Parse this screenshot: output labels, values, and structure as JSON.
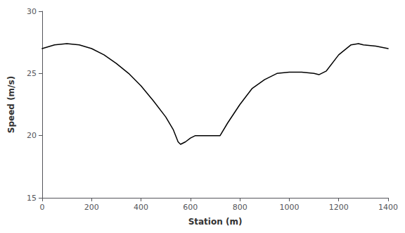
{
  "chart_data": {
    "type": "line",
    "x": [
      0,
      50,
      100,
      150,
      200,
      250,
      300,
      350,
      400,
      450,
      500,
      530,
      550,
      560,
      580,
      600,
      620,
      650,
      680,
      700,
      720,
      750,
      800,
      850,
      900,
      950,
      1000,
      1050,
      1100,
      1120,
      1150,
      1200,
      1250,
      1280,
      1300,
      1350,
      1400
    ],
    "values": [
      27.0,
      27.3,
      27.4,
      27.3,
      27.0,
      26.5,
      25.8,
      25.0,
      24.0,
      22.8,
      21.5,
      20.5,
      19.5,
      19.3,
      19.5,
      19.8,
      20.0,
      20.0,
      20.0,
      20.0,
      20.0,
      21.0,
      22.5,
      23.8,
      24.5,
      25.0,
      25.1,
      25.1,
      25.0,
      24.9,
      25.2,
      26.5,
      27.3,
      27.4,
      27.3,
      27.2,
      27.0
    ],
    "xlim": [
      0,
      1400
    ],
    "ylim": [
      15,
      30
    ],
    "xticks": [
      0,
      200,
      400,
      600,
      800,
      1000,
      1200,
      1400
    ],
    "yticks": [
      15,
      20,
      25,
      30
    ],
    "xlabel": "Station (m)",
    "ylabel": "Speed (m/s)",
    "color": "#000000",
    "grid": false
  }
}
